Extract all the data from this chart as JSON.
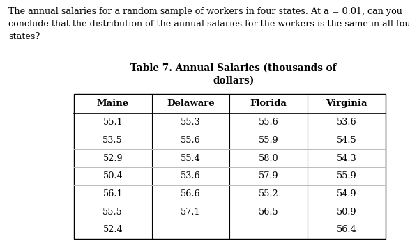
{
  "intro_text": "The annual salaries for a random sample of workers in four states. At a = 0.01, can you\nconclude that the distribution of the annual salaries for the workers is the same in all four\nstates?",
  "title_line1": "Table 7. Annual Salaries (thousands of",
  "title_line2": "dollars)",
  "columns": [
    "Maine",
    "Delaware",
    "Florida",
    "Virginia"
  ],
  "rows": [
    [
      "55.1",
      "55.3",
      "55.6",
      "53.6"
    ],
    [
      "53.5",
      "55.6",
      "55.9",
      "54.5"
    ],
    [
      "52.9",
      "55.4",
      "58.0",
      "54.3"
    ],
    [
      "50.4",
      "53.6",
      "57.9",
      "55.9"
    ],
    [
      "56.1",
      "56.6",
      "55.2",
      "54.9"
    ],
    [
      "55.5",
      "57.1",
      "56.5",
      "50.9"
    ],
    [
      "52.4",
      "",
      "",
      "56.4"
    ]
  ],
  "bg_color": "#ffffff",
  "text_color": "#000000",
  "intro_fontsize": 9.2,
  "title_fontsize": 9.8,
  "table_fontsize": 9.2,
  "header_fontsize": 9.5
}
